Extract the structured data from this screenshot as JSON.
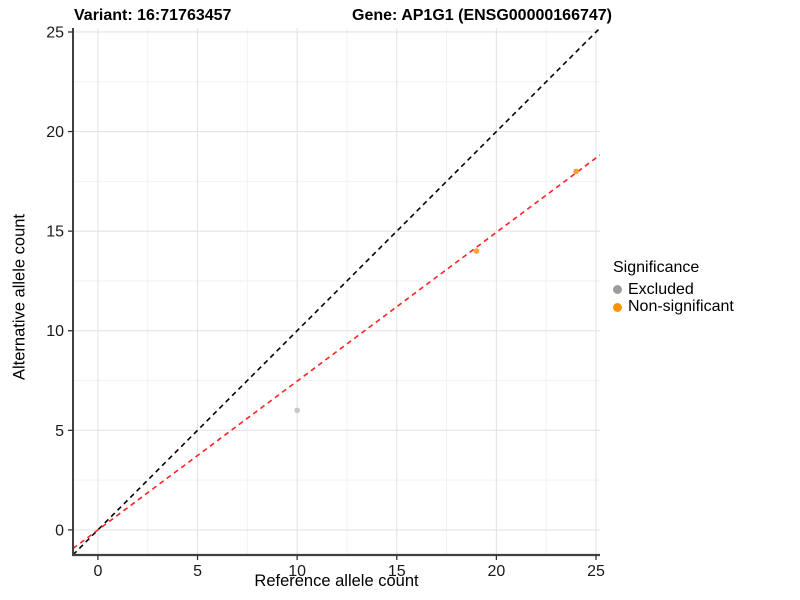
{
  "titles": {
    "variant": "Variant: 16:71763457",
    "gene": "Gene: AP1G1 (ENSG00000166747)"
  },
  "legend": {
    "title": "Significance",
    "items": [
      {
        "label": "Excluded",
        "color": "#9c9c9c"
      },
      {
        "label": "Non-significant",
        "color": "#ff9300"
      }
    ]
  },
  "chart_data": {
    "type": "scatter",
    "title": "Variant: 16:71763457 / Gene: AP1G1 (ENSG00000166747)",
    "xlabel": "Reference allele count",
    "ylabel": "Alternative allele count",
    "xlim": [
      -1.25,
      25.2
    ],
    "ylim": [
      -1.26,
      25.2
    ],
    "x_ticks": [
      0,
      5,
      10,
      15,
      20,
      25
    ],
    "y_ticks": [
      0,
      5,
      10,
      15,
      20,
      25
    ],
    "x_minor_ticks": [
      2.5,
      7.5,
      12.5,
      17.5,
      22.5
    ],
    "y_minor_ticks": [
      2.5,
      7.5,
      12.5,
      17.5,
      22.5
    ],
    "grid": true,
    "legend_position": "right",
    "series": [
      {
        "name": "Excluded",
        "color": "#c8c8c8",
        "points": [
          {
            "x": 10,
            "y": 6
          }
        ]
      },
      {
        "name": "Non-significant",
        "color": "#ffa033",
        "points": [
          {
            "x": 19,
            "y": 14
          },
          {
            "x": 24,
            "y": 18
          }
        ]
      }
    ],
    "reference_lines": [
      {
        "name": "identity-line",
        "slope": 1,
        "intercept": 0,
        "color": "#000000",
        "dash": "5 4"
      },
      {
        "name": "fitted-line",
        "slope": 0.747,
        "intercept": 0,
        "color": "#ff2222",
        "dash": "5 4"
      }
    ]
  },
  "style": {
    "major_grid_color": "#e4e4e4",
    "minor_grid_color": "#f2f2f2",
    "axis_line_color": "#404040",
    "tick_color": "#333333",
    "tick_label_color": "#1a1a1a"
  }
}
